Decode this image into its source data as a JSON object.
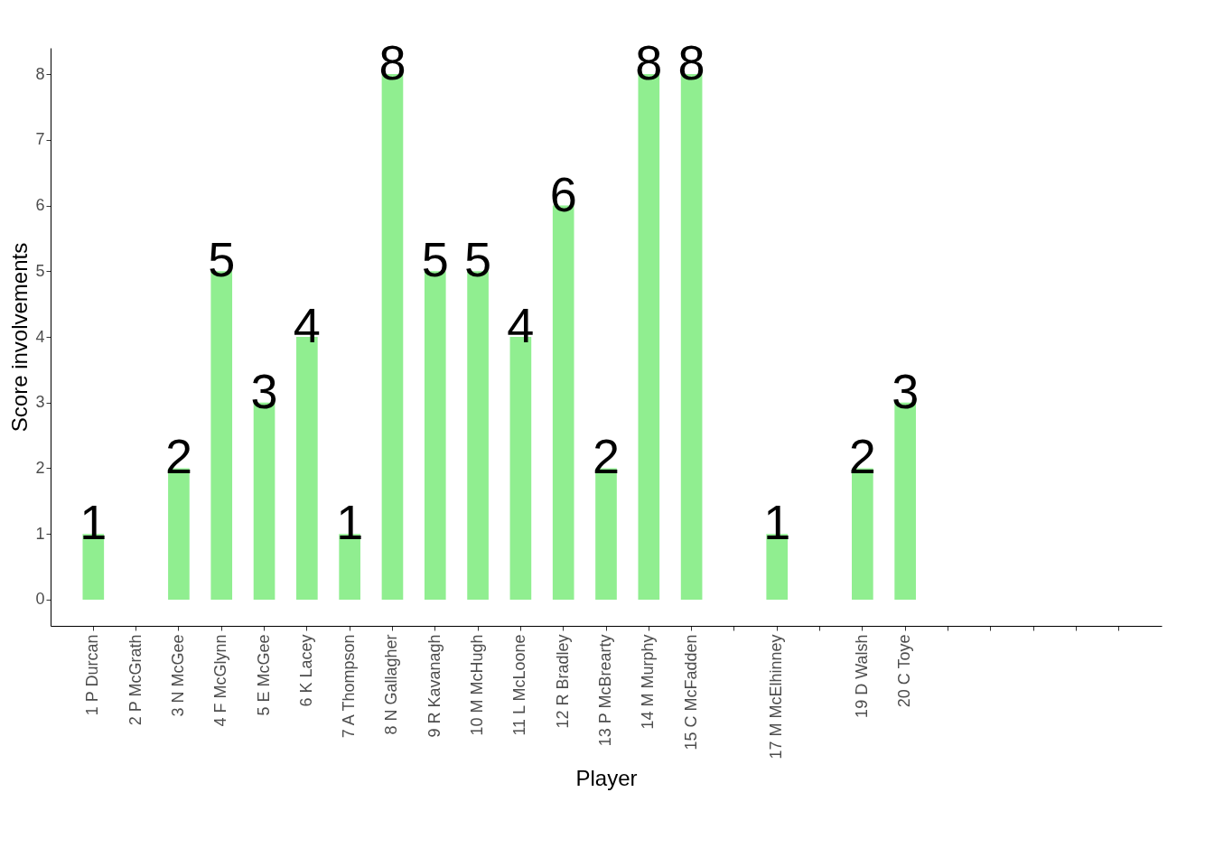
{
  "chart_data": {
    "type": "bar",
    "xlabel": "Player",
    "ylabel": "Score involvements",
    "categories": [
      "1 P Durcan",
      "2 P McGrath",
      "3 N McGee",
      "4 F McGlynn",
      "5 E McGee",
      "6 K Lacey",
      "7 A Thompson",
      "8 N Gallagher",
      "9 R Kavanagh",
      "10 M McHugh",
      "11 L McLoone",
      "12 R Bradley",
      "13 P McBrearty",
      "14 M Murphy",
      "15 C McFadden",
      null,
      "17 M McElhinney",
      null,
      "19 D Walsh",
      "20 C Toye",
      null,
      null,
      null,
      null,
      null
    ],
    "values": [
      1,
      null,
      2,
      5,
      3,
      4,
      1,
      8,
      5,
      5,
      4,
      6,
      2,
      8,
      8,
      null,
      1,
      null,
      2,
      3,
      null,
      null,
      null,
      null,
      null
    ],
    "color": "#90ee90",
    "ylim": [
      -0.4,
      8.4
    ],
    "yticks": [
      0,
      1,
      2,
      3,
      4,
      5,
      6,
      7,
      8
    ],
    "grid": false,
    "data_labels": true
  }
}
